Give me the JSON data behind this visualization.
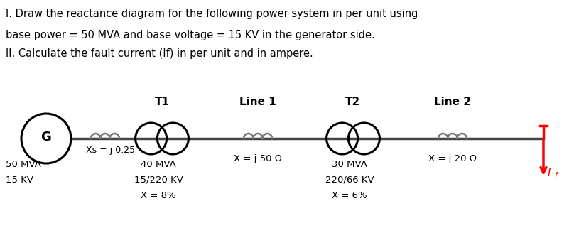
{
  "title_line1": "I. Draw the reactance diagram for the following power system in per unit using",
  "title_line2": "base power = 50 MVA and base voltage = 15 KV in the generator side.",
  "title_line3": "II. Calculate the fault current (If) in per unit and in ampere.",
  "text_color": "#000000",
  "background_color": "#ffffff",
  "generator_label": "G",
  "xs_label": "Xs = j 0.25",
  "t1_label": "T1",
  "line1_label": "Line 1",
  "line1_x_label": "X = j 50 Ω",
  "t2_label": "T2",
  "line2_label": "Line 2",
  "line2_x_label": "X = j 20 Ω",
  "fault_label": "I",
  "fault_sub": "f",
  "gen_specs": [
    "50 MVA",
    "15 KV"
  ],
  "t1_specs": [
    "40 MVA",
    "15/220 KV",
    "X = 8%"
  ],
  "t2_specs": [
    "30 MVA",
    "220/66 KV",
    "X = 6%"
  ]
}
